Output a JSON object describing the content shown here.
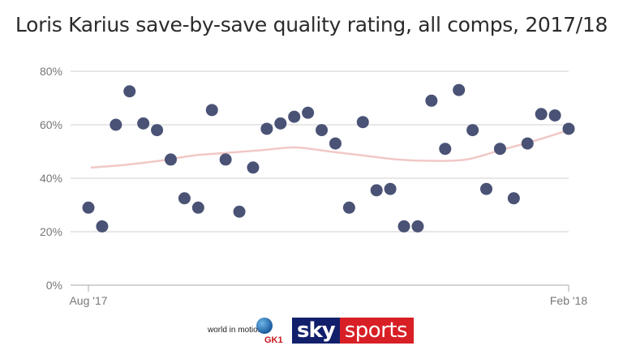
{
  "chart_data": {
    "type": "scatter",
    "title": "Loris Karius save-by-save quality rating, all comps, 2017/18",
    "xlabel": "",
    "ylabel": "",
    "x_tick_labels": [
      "Aug '17",
      "Feb '18"
    ],
    "y_ticks": [
      0,
      20,
      40,
      60,
      80
    ],
    "y_tick_labels": [
      "0%",
      "20%",
      "40%",
      "60%",
      "80%"
    ],
    "ylim": [
      0,
      80
    ],
    "grid": true,
    "point_color": "#4a5275",
    "trend_color": "#f0c8c6",
    "values": [
      29,
      22,
      60,
      72.5,
      60.5,
      58,
      47,
      32.5,
      29,
      65.5,
      47,
      27.5,
      44,
      58.5,
      60.5,
      63,
      64.5,
      58,
      53,
      29,
      61,
      35.5,
      36,
      22,
      22,
      69,
      51,
      73,
      58,
      36,
      51,
      32.5,
      53,
      64,
      63.5,
      58.5
    ],
    "trend": [
      44,
      45,
      46.5,
      48.5,
      49.5,
      50.5,
      51.5,
      50,
      48.5,
      47,
      46.5,
      47,
      50.5,
      54,
      58
    ]
  },
  "logos": {
    "world_in_motion": "world in motion",
    "gk1": "GK1",
    "sky": "sky",
    "sports": "sports"
  }
}
